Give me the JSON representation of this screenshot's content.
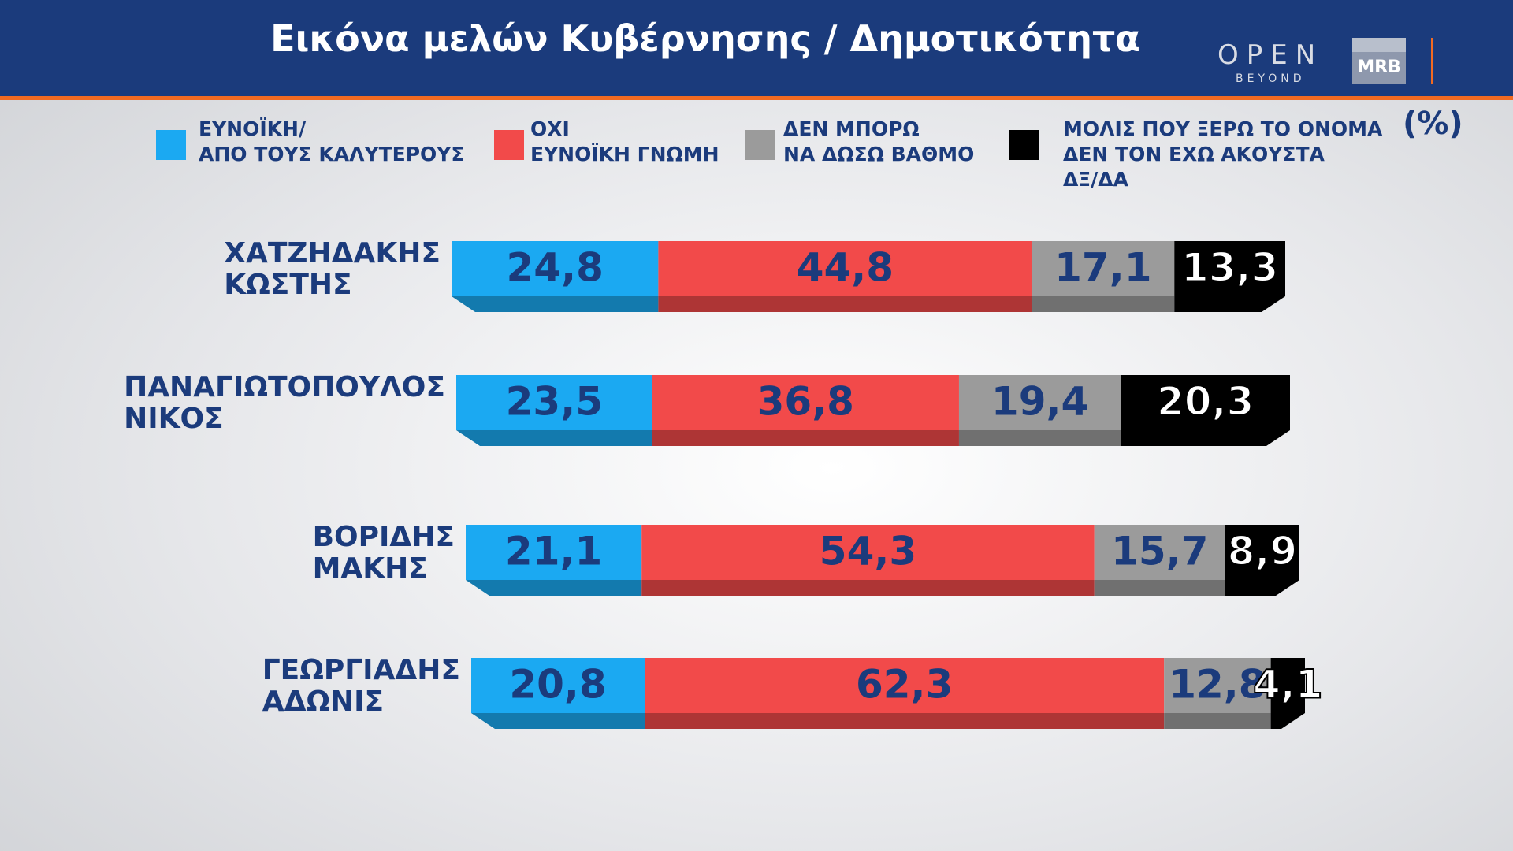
{
  "chart_data": {
    "type": "stacked-bar",
    "title": "Εικόνα μελών Κυβέρνησης / Δημοτικότητα",
    "unit_label": "(%)",
    "categories": [
      "ΧΑΤΖΗΔΑΚΗΣ\nΚΩΣΤΗΣ",
      "ΠΑΝΑΓΙΩΤΟΠΟΥΛΟΣ\nΝΙΚΟΣ",
      "ΒΟΡΙΔΗΣ\nΜΑΚΗΣ",
      "ΓΕΩΡΓΙΑΔΗΣ\nΑΔΩΝΙΣ"
    ],
    "series": [
      {
        "name": "ΕΥΝΟΪΚΗ/\nΑΠΟ ΤΟΥΣ ΚΑΛΥΤΕΡΟΥΣ",
        "color": "#1ba9f2",
        "values": [
          24.8,
          23.5,
          21.1,
          20.8
        ],
        "value_labels": [
          "24,8",
          "23,5",
          "21,1",
          "20,8"
        ]
      },
      {
        "name": "ΟΧΙ\nΕΥΝΟΪΚΗ ΓΝΩΜΗ",
        "color": "#f24a4a",
        "values": [
          44.8,
          36.8,
          54.3,
          62.3
        ],
        "value_labels": [
          "44,8",
          "36,8",
          "54,3",
          "62,3"
        ]
      },
      {
        "name": "ΔΕΝ ΜΠΟΡΩ\nΝΑ ΔΩΣΩ ΒΑΘΜΟ",
        "color": "#9b9b9b",
        "values": [
          17.1,
          19.4,
          15.7,
          12.8
        ],
        "value_labels": [
          "17,1",
          "19,4",
          "15,7",
          "12,8"
        ]
      },
      {
        "name": "ΜΟΛΙΣ ΠΟΥ ΞΕΡΩ ΤΟ ΟΝΟΜΑ\nΔΕΝ ΤΟΝ ΕΧΩ ΑΚΟΥΣΤΑ\nΔΞ/ΔΑ",
        "color": "#000000",
        "values": [
          13.3,
          20.3,
          8.9,
          4.1
        ],
        "value_labels": [
          "13,3",
          "20,3",
          "8,9",
          "4,1"
        ]
      }
    ]
  },
  "branding": {
    "channel": "OPEN",
    "channel_sub": "BEYOND",
    "pollster": "MRB"
  }
}
